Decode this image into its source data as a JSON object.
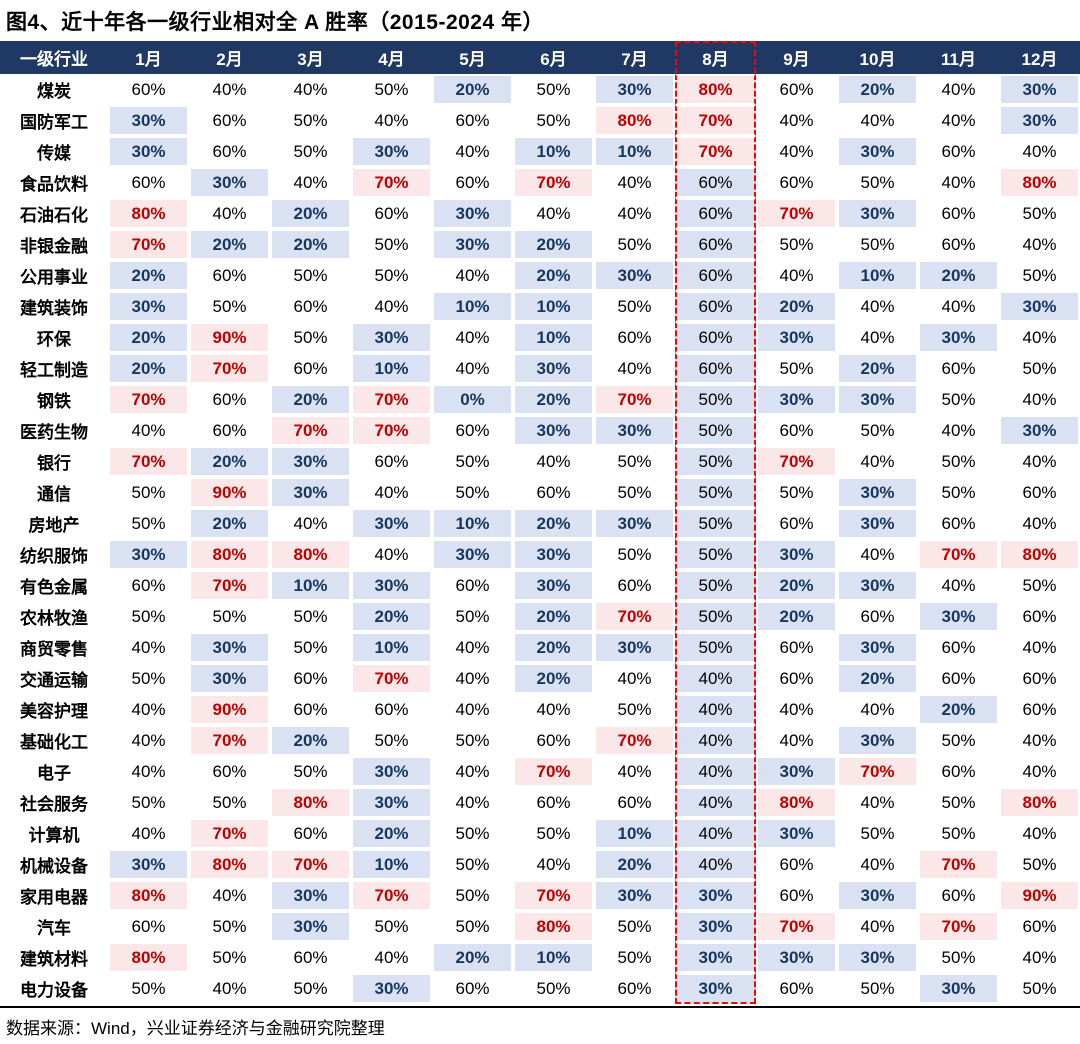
{
  "title": "图4、近十年各一级行业相对全 A 胜率（2015-2024 年）",
  "footer": "数据来源：Wind，兴业证券经济与金融研究院整理",
  "colors": {
    "header_bg": "#1F3864",
    "low_cell_bg": "#D9E1F2",
    "low_cell_text": "#17375E",
    "high_cell_bg": "#FBE7E7",
    "high_cell_text": "#C00000",
    "highlight_border": "#FF0000"
  },
  "chart_data": {
    "type": "table",
    "title": "近十年各一级行业相对全A胜率（2015-2024年）",
    "columns": [
      "一级行业",
      "1月",
      "2月",
      "3月",
      "4月",
      "5月",
      "6月",
      "7月",
      "8月",
      "9月",
      "10月",
      "11月",
      "12月"
    ],
    "highlighted_column": "8月",
    "highlight_month_index": 7,
    "high_threshold": 70,
    "low_threshold": 30,
    "value_unit": "%",
    "rows": [
      {
        "industry": "煤炭",
        "values": [
          60,
          40,
          40,
          50,
          20,
          50,
          30,
          80,
          60,
          20,
          40,
          30
        ]
      },
      {
        "industry": "国防军工",
        "values": [
          30,
          60,
          50,
          40,
          60,
          50,
          80,
          70,
          40,
          40,
          40,
          30
        ]
      },
      {
        "industry": "传媒",
        "values": [
          30,
          60,
          50,
          30,
          40,
          10,
          10,
          70,
          40,
          30,
          60,
          40
        ]
      },
      {
        "industry": "食品饮料",
        "values": [
          60,
          30,
          40,
          70,
          60,
          70,
          40,
          60,
          60,
          50,
          40,
          80
        ]
      },
      {
        "industry": "石油石化",
        "values": [
          80,
          40,
          20,
          60,
          30,
          40,
          40,
          60,
          70,
          30,
          60,
          50
        ]
      },
      {
        "industry": "非银金融",
        "values": [
          70,
          20,
          20,
          50,
          30,
          20,
          50,
          60,
          50,
          50,
          60,
          40
        ]
      },
      {
        "industry": "公用事业",
        "values": [
          20,
          60,
          50,
          50,
          40,
          20,
          30,
          60,
          40,
          10,
          20,
          50
        ]
      },
      {
        "industry": "建筑装饰",
        "values": [
          30,
          50,
          60,
          40,
          10,
          10,
          50,
          60,
          20,
          40,
          40,
          30
        ]
      },
      {
        "industry": "环保",
        "values": [
          20,
          90,
          50,
          30,
          40,
          10,
          60,
          60,
          30,
          40,
          30,
          40
        ]
      },
      {
        "industry": "轻工制造",
        "values": [
          20,
          70,
          60,
          10,
          40,
          30,
          40,
          60,
          50,
          20,
          60,
          50
        ]
      },
      {
        "industry": "钢铁",
        "values": [
          70,
          60,
          20,
          70,
          0,
          20,
          70,
          50,
          30,
          30,
          50,
          40
        ]
      },
      {
        "industry": "医药生物",
        "values": [
          40,
          60,
          70,
          70,
          60,
          30,
          30,
          50,
          60,
          50,
          40,
          30
        ]
      },
      {
        "industry": "银行",
        "values": [
          70,
          20,
          30,
          60,
          50,
          40,
          50,
          50,
          70,
          40,
          50,
          40
        ]
      },
      {
        "industry": "通信",
        "values": [
          50,
          90,
          30,
          40,
          50,
          60,
          50,
          50,
          50,
          30,
          50,
          60
        ]
      },
      {
        "industry": "房地产",
        "values": [
          50,
          20,
          40,
          30,
          10,
          20,
          30,
          50,
          60,
          30,
          60,
          40
        ]
      },
      {
        "industry": "纺织服饰",
        "values": [
          30,
          80,
          80,
          40,
          30,
          30,
          50,
          50,
          30,
          40,
          70,
          80
        ]
      },
      {
        "industry": "有色金属",
        "values": [
          60,
          70,
          10,
          30,
          60,
          30,
          60,
          50,
          20,
          30,
          40,
          50
        ]
      },
      {
        "industry": "农林牧渔",
        "values": [
          50,
          50,
          50,
          20,
          50,
          20,
          70,
          50,
          20,
          60,
          30,
          60
        ]
      },
      {
        "industry": "商贸零售",
        "values": [
          40,
          30,
          50,
          10,
          40,
          20,
          30,
          50,
          60,
          30,
          60,
          40
        ]
      },
      {
        "industry": "交通运输",
        "values": [
          50,
          30,
          60,
          70,
          40,
          20,
          40,
          40,
          60,
          20,
          60,
          60
        ]
      },
      {
        "industry": "美容护理",
        "values": [
          40,
          90,
          60,
          60,
          40,
          40,
          50,
          40,
          40,
          40,
          20,
          60
        ]
      },
      {
        "industry": "基础化工",
        "values": [
          40,
          70,
          20,
          50,
          50,
          60,
          70,
          40,
          40,
          30,
          50,
          40
        ]
      },
      {
        "industry": "电子",
        "values": [
          40,
          60,
          50,
          30,
          40,
          70,
          40,
          40,
          30,
          70,
          60,
          40
        ]
      },
      {
        "industry": "社会服务",
        "values": [
          50,
          50,
          80,
          30,
          40,
          60,
          60,
          40,
          80,
          40,
          50,
          80
        ]
      },
      {
        "industry": "计算机",
        "values": [
          40,
          70,
          60,
          20,
          50,
          50,
          10,
          40,
          30,
          50,
          50,
          40
        ]
      },
      {
        "industry": "机械设备",
        "values": [
          30,
          80,
          70,
          10,
          50,
          40,
          20,
          40,
          60,
          40,
          70,
          50
        ]
      },
      {
        "industry": "家用电器",
        "values": [
          80,
          40,
          30,
          70,
          50,
          70,
          30,
          30,
          60,
          30,
          60,
          90
        ]
      },
      {
        "industry": "汽车",
        "values": [
          60,
          50,
          30,
          50,
          50,
          80,
          50,
          30,
          70,
          40,
          70,
          60
        ]
      },
      {
        "industry": "建筑材料",
        "values": [
          80,
          50,
          60,
          40,
          20,
          10,
          50,
          30,
          30,
          30,
          50,
          40
        ]
      },
      {
        "industry": "电力设备",
        "values": [
          50,
          40,
          50,
          30,
          60,
          50,
          60,
          30,
          60,
          50,
          30,
          50
        ]
      }
    ]
  }
}
